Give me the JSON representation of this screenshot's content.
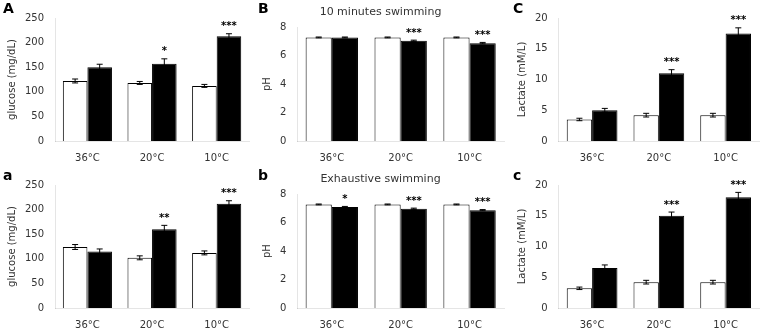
{
  "chart_data": [
    {
      "type": "bar",
      "subtitle": "A",
      "ylabel": "glucose (mg/dL)",
      "categories": [
        "36°C",
        "20°C",
        "10°C"
      ],
      "ylim": [
        0,
        250
      ],
      "yticks": [
        0,
        50,
        100,
        150,
        200,
        250
      ],
      "grid": false,
      "series": [
        {
          "color": "#ffffff",
          "values": [
            122,
            118,
            112
          ],
          "errors": [
            4,
            3,
            3
          ]
        },
        {
          "color": "#000000",
          "values": [
            150,
            157,
            213
          ],
          "errors": [
            6,
            10,
            5
          ],
          "annotations": [
            null,
            "*",
            "***"
          ]
        }
      ]
    },
    {
      "type": "bar",
      "title": "10 minutes swimming",
      "subtitle": "B",
      "ylabel": "pH",
      "categories": [
        "36°C",
        "20°C",
        "10°C"
      ],
      "ylim": [
        0,
        8
      ],
      "yticks": [
        0,
        2,
        4,
        6,
        8
      ],
      "grid": false,
      "series": [
        {
          "color": "#ffffff",
          "values": [
            7.28,
            7.28,
            7.28
          ],
          "errors": [
            0.03,
            0.03,
            0.03
          ]
        },
        {
          "color": "#000000",
          "values": [
            7.28,
            7.05,
            6.88
          ],
          "errors": [
            0.03,
            0.04,
            0.05
          ],
          "annotations": [
            null,
            "***",
            "***"
          ]
        }
      ]
    },
    {
      "type": "bar",
      "subtitle": "C",
      "ylabel": "Lactate (mM/L)",
      "categories": [
        "36°C",
        "20°C",
        "10°C"
      ],
      "ylim": [
        0,
        20
      ],
      "yticks": [
        0,
        5,
        10,
        15,
        20
      ],
      "grid": false,
      "series": [
        {
          "color": "#ffffff",
          "values": [
            3.5,
            4.2,
            4.2
          ],
          "errors": [
            0.2,
            0.3,
            0.3
          ]
        },
        {
          "color": "#000000",
          "values": [
            5.0,
            11.0,
            17.5
          ],
          "errors": [
            0.3,
            0.6,
            0.9
          ],
          "annotations": [
            null,
            "***",
            "***"
          ]
        }
      ]
    },
    {
      "type": "bar",
      "subtitle": "a",
      "ylabel": "glucose (mg/dL)",
      "categories": [
        "36°C",
        "20°C",
        "10°C"
      ],
      "ylim": [
        0,
        250
      ],
      "yticks": [
        0,
        50,
        100,
        150,
        200,
        250
      ],
      "grid": false,
      "series": [
        {
          "color": "#ffffff",
          "values": [
            124,
            102,
            112
          ],
          "errors": [
            5,
            4,
            4
          ]
        },
        {
          "color": "#000000",
          "values": [
            115,
            160,
            212
          ],
          "errors": [
            5,
            8,
            6
          ],
          "annotations": [
            null,
            "**",
            "***"
          ]
        }
      ]
    },
    {
      "type": "bar",
      "title": "Exhaustive swimming",
      "subtitle": "b",
      "ylabel": "pH",
      "categories": [
        "36°C",
        "20°C",
        "10°C"
      ],
      "ylim": [
        0,
        8
      ],
      "yticks": [
        0,
        2,
        4,
        6,
        8
      ],
      "grid": false,
      "series": [
        {
          "color": "#ffffff",
          "values": [
            7.28,
            7.28,
            7.28
          ],
          "errors": [
            0.03,
            0.03,
            0.03
          ]
        },
        {
          "color": "#000000",
          "values": [
            7.1,
            6.98,
            6.88
          ],
          "errors": [
            0.04,
            0.04,
            0.04
          ],
          "annotations": [
            "*",
            "***",
            "***"
          ]
        }
      ]
    },
    {
      "type": "bar",
      "subtitle": "c",
      "ylabel": "Lactate (mM/L)",
      "categories": [
        "36°C",
        "20°C",
        "10°C"
      ],
      "ylim": [
        0,
        20
      ],
      "yticks": [
        0,
        5,
        10,
        15,
        20
      ],
      "grid": false,
      "series": [
        {
          "color": "#ffffff",
          "values": [
            3.2,
            4.2,
            4.2
          ],
          "errors": [
            0.2,
            0.3,
            0.3
          ]
        },
        {
          "color": "#000000",
          "values": [
            6.5,
            15.0,
            18.0
          ],
          "errors": [
            0.5,
            0.6,
            0.8
          ],
          "annotations": [
            null,
            "***",
            "***"
          ]
        }
      ]
    }
  ]
}
